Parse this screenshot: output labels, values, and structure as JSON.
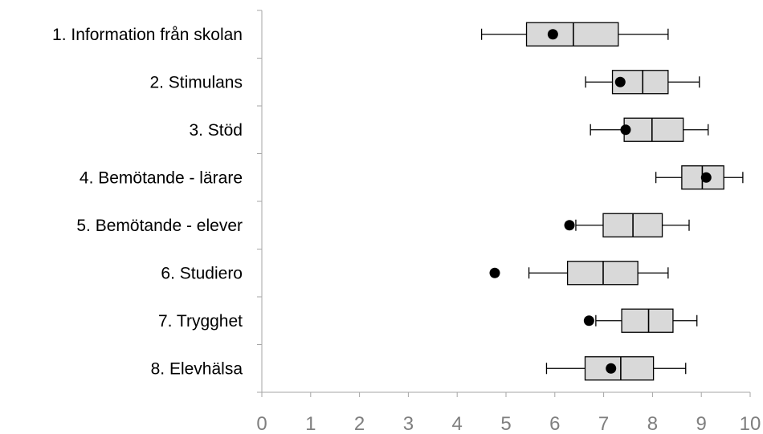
{
  "chart_data": {
    "type": "boxplot",
    "orientation": "horizontal",
    "categories": [
      "1. Information från skolan",
      "2. Stimulans",
      "3. Stöd",
      "4. Bemötande - lärare",
      "5. Bemötande - elever",
      "6. Studiero",
      "7. Trygghet",
      "8. Elevhälsa"
    ],
    "boxes": [
      {
        "whisker_low": 4.5,
        "q1": 5.42,
        "median": 6.38,
        "q3": 7.3,
        "whisker_high": 8.32,
        "point": 5.96
      },
      {
        "whisker_low": 6.63,
        "q1": 7.18,
        "median": 7.8,
        "q3": 8.32,
        "whisker_high": 8.96,
        "point": 7.34
      },
      {
        "whisker_low": 6.73,
        "q1": 7.42,
        "median": 7.99,
        "q3": 8.63,
        "whisker_high": 9.14,
        "point": 7.45
      },
      {
        "whisker_low": 8.07,
        "q1": 8.6,
        "median": 9.02,
        "q3": 9.46,
        "whisker_high": 9.85,
        "point": 9.1
      },
      {
        "whisker_low": 6.43,
        "q1": 6.99,
        "median": 7.6,
        "q3": 8.2,
        "whisker_high": 8.75,
        "point": 6.3
      },
      {
        "whisker_low": 5.47,
        "q1": 6.26,
        "median": 6.99,
        "q3": 7.7,
        "whisker_high": 8.32,
        "point": 4.77
      },
      {
        "whisker_low": 6.84,
        "q1": 7.37,
        "median": 7.92,
        "q3": 8.42,
        "whisker_high": 8.91,
        "point": 6.7
      },
      {
        "whisker_low": 5.83,
        "q1": 6.62,
        "median": 7.35,
        "q3": 8.02,
        "whisker_high": 8.68,
        "point": 7.15
      }
    ],
    "x_ticks": [
      "0",
      "1",
      "2",
      "3",
      "4",
      "5",
      "6",
      "7",
      "8",
      "9",
      "10"
    ],
    "xlim": [
      0,
      10
    ],
    "grid": false,
    "colors": {
      "box_fill": "#d9d9d9",
      "box_stroke": "#000000",
      "point": "#000000",
      "axis": "#a6a6a6",
      "tick_label": "#7f7f7f"
    }
  }
}
